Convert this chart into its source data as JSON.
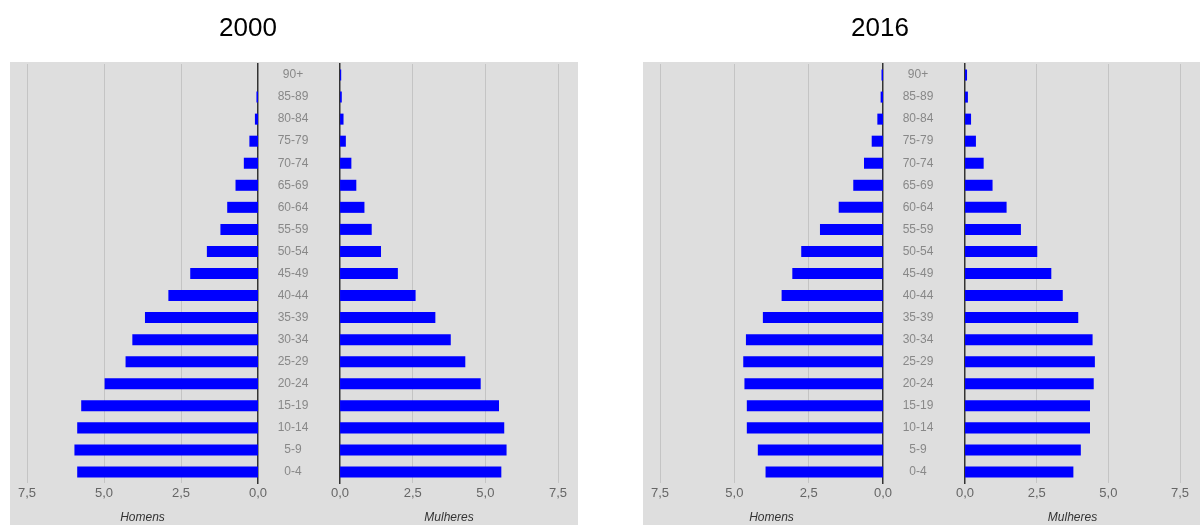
{
  "chart_data": [
    {
      "type": "bar",
      "orientation": "horizontal",
      "title": "2000",
      "xlabel": "Homens",
      "categories": [
        "90+",
        "85-89",
        "80-84",
        "75-79",
        "70-74",
        "65-69",
        "60-64",
        "55-59",
        "50-54",
        "45-49",
        "40-44",
        "35-39",
        "30-34",
        "25-29",
        "20-24",
        "15-19",
        "10-14",
        "5-9",
        "0-4"
      ],
      "values": [
        0,
        0.05,
        0.1,
        0.28,
        0.46,
        0.73,
        1.0,
        1.22,
        1.66,
        2.2,
        2.91,
        3.67,
        4.08,
        4.3,
        4.98,
        5.74,
        5.87,
        5.96,
        5.87
      ],
      "color": "#0000ff",
      "xlim": [
        7.5,
        0
      ],
      "xticks": [
        {
          "value": 7.5,
          "label": "7,5"
        },
        {
          "value": 5,
          "label": "5,0"
        },
        {
          "value": 2.5,
          "label": "2,5"
        },
        {
          "value": 0,
          "label": "0,0"
        }
      ],
      "grid": "x"
    },
    {
      "type": "bar",
      "orientation": "horizontal",
      "xlabel": "Mulheres",
      "categories": [
        null,
        null,
        null,
        null,
        null,
        null,
        null,
        null,
        null,
        null,
        null,
        null,
        null,
        null,
        null,
        null,
        null,
        null,
        null
      ],
      "values": [
        0.04,
        0.06,
        0.12,
        0.2,
        0.39,
        0.56,
        0.84,
        1.09,
        1.41,
        1.99,
        2.6,
        3.28,
        3.81,
        4.31,
        4.84,
        5.47,
        5.65,
        5.73,
        5.55
      ],
      "color": "#0000ff",
      "xlim": [
        0,
        7.5
      ],
      "xticks": [
        {
          "value": 0,
          "label": "0,0"
        },
        {
          "value": 2.5,
          "label": "2,5"
        },
        {
          "value": 5,
          "label": "5,0"
        },
        {
          "value": 7.5,
          "label": "7,5"
        }
      ],
      "grid": "x",
      "tick_labels": "x"
    },
    {
      "type": "bar",
      "orientation": "horizontal",
      "title": "2016",
      "xlabel": "Homens",
      "categories": [
        "90+",
        "85-89",
        "80-84",
        "75-79",
        "70-74",
        "65-69",
        "60-64",
        "55-59",
        "50-54",
        "45-49",
        "40-44",
        "35-39",
        "30-34",
        "25-29",
        "20-24",
        "15-19",
        "10-14",
        "5-9",
        "0-4"
      ],
      "values": [
        0.05,
        0.08,
        0.19,
        0.38,
        0.64,
        1.0,
        1.49,
        2.12,
        2.75,
        3.05,
        3.41,
        4.04,
        4.61,
        4.7,
        4.66,
        4.58,
        4.58,
        4.21,
        3.95
      ],
      "color": "#0000ff",
      "xlim": [
        7.5,
        0
      ],
      "xticks": [
        {
          "value": 7.5,
          "label": "7,5"
        },
        {
          "value": 5,
          "label": "5,0"
        },
        {
          "value": 2.5,
          "label": "2,5"
        },
        {
          "value": 0,
          "label": "0,0"
        }
      ],
      "grid": "x"
    },
    {
      "type": "bar",
      "orientation": "horizontal",
      "xlabel": "Mulheres",
      "categories": [
        null,
        null,
        null,
        null,
        null,
        null,
        null,
        null,
        null,
        null,
        null,
        null,
        null,
        null,
        null,
        null,
        null,
        null,
        null
      ],
      "values": [
        0.07,
        0.1,
        0.21,
        0.38,
        0.65,
        0.96,
        1.45,
        1.95,
        2.52,
        3.01,
        3.41,
        3.95,
        4.45,
        4.53,
        4.49,
        4.36,
        4.36,
        4.04,
        3.78
      ],
      "color": "#0000ff",
      "xlim": [
        0,
        7.5
      ],
      "xticks": [
        {
          "value": 0,
          "label": "0,0"
        },
        {
          "value": 2.5,
          "label": "2,5"
        },
        {
          "value": 5,
          "label": "5,0"
        },
        {
          "value": 7.5,
          "label": "7,5"
        }
      ],
      "grid": "x",
      "tick_labels": "x"
    }
  ]
}
